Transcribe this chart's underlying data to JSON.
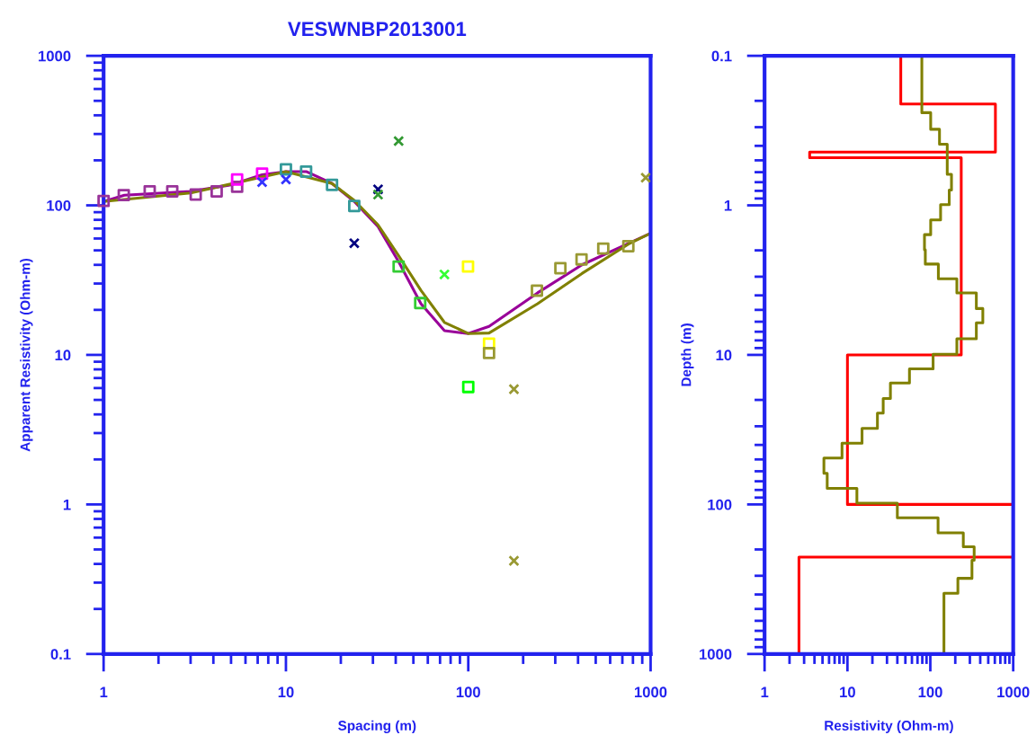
{
  "chart_data": [
    {
      "type": "scatter",
      "title": "VESWNBP2013001",
      "xlabel": "Spacing (m)",
      "ylabel": "Apparent Resistivity (Ohm-m)",
      "log": "xy",
      "xlim": [
        1,
        1000
      ],
      "ylim": [
        0.1,
        1000
      ],
      "xticks": [
        1,
        10,
        100,
        1000
      ],
      "yticks": [
        0.1,
        1,
        10,
        100,
        1000
      ],
      "series": [
        {
          "type": "line",
          "color": "#990099",
          "x": [
            1,
            1.3,
            3,
            5,
            7.4,
            10,
            13,
            17.9,
            23.7,
            32,
            41.5,
            55,
            74,
            100,
            130,
            240,
            420,
            1000
          ],
          "values": [
            106,
            117,
            124,
            137,
            160,
            168,
            168,
            140,
            106,
            72,
            42,
            22,
            14.5,
            13.9,
            15.5,
            26,
            40,
            65
          ]
        },
        {
          "type": "line",
          "color": "#808000",
          "x": [
            1,
            3,
            10,
            17.9,
            23.7,
            32,
            41.5,
            55,
            74,
            100,
            130,
            240,
            420,
            755,
            1000
          ],
          "values": [
            106,
            121,
            168,
            140,
            108,
            74,
            46,
            27,
            16.5,
            13.9,
            14,
            22,
            35,
            55,
            65
          ]
        },
        {
          "marker": "square",
          "x": [
            1,
            1.29,
            1.79,
            2.38,
            3.2,
            4.17,
            5.4,
            5.4,
            7.4,
            10,
            12.9,
            17.9,
            23.7,
            41.5,
            54.5,
            99.7,
            130,
            130,
            238,
            320,
            418,
            550,
            755,
            100
          ],
          "values": [
            107,
            117,
            124,
            124,
            118,
            124,
            133,
            149,
            163,
            174,
            168,
            137,
            99,
            39,
            22.2,
            39,
            11.9,
            10.3,
            26.9,
            38,
            43.5,
            51.4,
            53.3,
            6.1
          ],
          "colors": [
            "#993399",
            "#993399",
            "#993399",
            "#993399",
            "#993399",
            "#993399",
            "#993399",
            "#ff00ff",
            "#ff00ff",
            "#339999",
            "#339999",
            "#339999",
            "#339999",
            "#33cc33",
            "#33cc33",
            "#ffff00",
            "#ffff00",
            "#999933",
            "#999933",
            "#999933",
            "#999933",
            "#999933",
            "#999933",
            "#00ff00"
          ]
        },
        {
          "marker": "cross",
          "x": [
            7.4,
            10,
            23.7,
            32,
            32,
            41.5,
            74,
            940,
            178,
            178
          ],
          "values": [
            143,
            149,
            55.8,
            128,
            118,
            269,
            34.5,
            153,
            5.9,
            0.42
          ],
          "colors": [
            "#3333ff",
            "#3333ff",
            "#000080",
            "#000080",
            "#339933",
            "#339933",
            "#33ff33",
            "#999933",
            "#999933",
            "#999933"
          ]
        }
      ]
    },
    {
      "type": "line",
      "xlabel": "Resistivity (Ohm-m)",
      "ylabel": "Depth (m)",
      "log": "xy",
      "xlim": [
        1,
        1000
      ],
      "ylim": [
        1000,
        0.1
      ],
      "xticks": [
        1,
        10,
        100,
        1000
      ],
      "yticks": [
        0.1,
        1,
        10,
        100,
        1000
      ],
      "series": [
        {
          "color": "#ff0000",
          "x": [
            44,
            44,
            610,
            610,
            3.5,
            3.5,
            236,
            236,
            10,
            10,
            1000,
            1000,
            2.6,
            2.6
          ],
          "values": [
            0.1,
            0.21,
            0.21,
            0.44,
            0.44,
            0.48,
            0.48,
            10,
            10,
            100,
            100,
            225,
            225,
            1000
          ]
        },
        {
          "color": "#808000",
          "x": [
            79,
            79,
            101,
            101,
            129,
            129,
            160,
            160,
            180,
            180,
            169,
            169,
            133,
            133,
            101,
            101,
            85,
            85,
            87,
            87,
            125,
            125,
            209,
            209,
            359,
            359,
            430,
            430,
            359,
            359,
            209,
            209,
            108,
            108,
            56,
            56,
            33,
            33,
            27,
            27,
            23,
            23,
            15,
            15,
            8.6,
            8.6,
            5.2,
            5.2,
            5.7,
            5.7,
            13,
            13,
            40,
            40,
            124,
            124,
            250,
            250,
            338,
            338,
            318,
            318,
            215,
            215,
            146,
            146
          ],
          "values": [
            0.1,
            0.24,
            0.24,
            0.31,
            0.31,
            0.39,
            0.39,
            0.62,
            0.62,
            0.79,
            0.79,
            0.99,
            0.99,
            1.25,
            1.25,
            1.57,
            1.57,
            1.98,
            1.98,
            2.47,
            2.47,
            3.1,
            3.1,
            3.85,
            3.85,
            4.9,
            4.9,
            6.1,
            6.1,
            7.8,
            7.8,
            9.9,
            9.9,
            12.4,
            12.4,
            15.4,
            15.4,
            19.6,
            19.6,
            24.5,
            24.5,
            31,
            31,
            39,
            39,
            49,
            49,
            62,
            62,
            78,
            78,
            98,
            98,
            123,
            123,
            155,
            155,
            192,
            192,
            236,
            236,
            312,
            312,
            393,
            393,
            1000
          ]
        }
      ]
    }
  ]
}
